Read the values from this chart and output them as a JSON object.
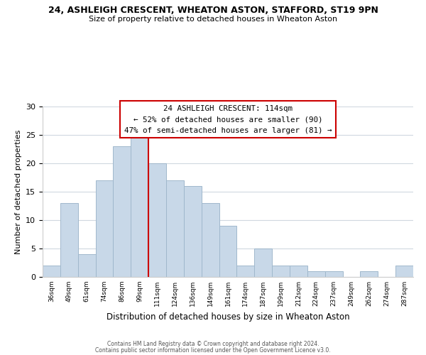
{
  "title1": "24, ASHLEIGH CRESCENT, WHEATON ASTON, STAFFORD, ST19 9PN",
  "title2": "Size of property relative to detached houses in Wheaton Aston",
  "xlabel": "Distribution of detached houses by size in Wheaton Aston",
  "ylabel": "Number of detached properties",
  "bin_labels": [
    "36sqm",
    "49sqm",
    "61sqm",
    "74sqm",
    "86sqm",
    "99sqm",
    "111sqm",
    "124sqm",
    "136sqm",
    "149sqm",
    "161sqm",
    "174sqm",
    "187sqm",
    "199sqm",
    "212sqm",
    "224sqm",
    "237sqm",
    "249sqm",
    "262sqm",
    "274sqm",
    "287sqm"
  ],
  "bar_heights": [
    2,
    13,
    4,
    17,
    23,
    25,
    20,
    17,
    16,
    13,
    9,
    2,
    5,
    2,
    2,
    1,
    1,
    0,
    1,
    0,
    2
  ],
  "bar_color": "#c8d8e8",
  "bar_edge_color": "#a0b8cc",
  "vline_x": 5.5,
  "vline_color": "#cc0000",
  "annotation_lines": [
    "24 ASHLEIGH CRESCENT: 114sqm",
    "← 52% of detached houses are smaller (90)",
    "47% of semi-detached houses are larger (81) →"
  ],
  "annotation_box_color": "#ffffff",
  "annotation_box_edge": "#cc0000",
  "ylim": [
    0,
    30
  ],
  "yticks": [
    0,
    5,
    10,
    15,
    20,
    25,
    30
  ],
  "footer1": "Contains HM Land Registry data © Crown copyright and database right 2024.",
  "footer2": "Contains public sector information licensed under the Open Government Licence v3.0.",
  "bg_color": "#ffffff",
  "grid_color": "#d0d8e0"
}
